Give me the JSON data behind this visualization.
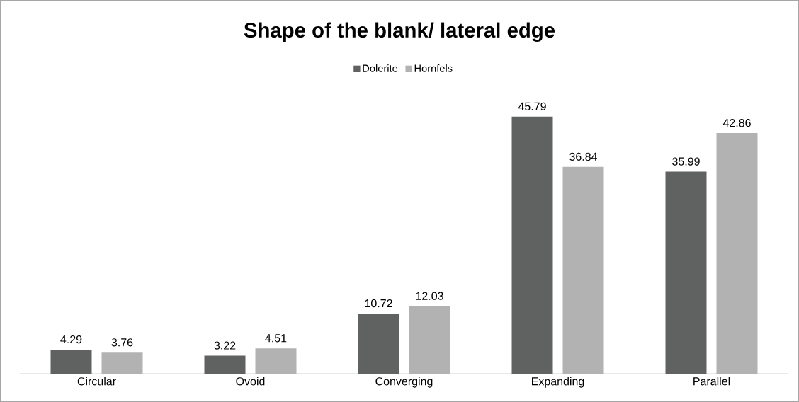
{
  "chart_data": {
    "type": "bar",
    "title": "Shape of the blank/ lateral edge",
    "categories": [
      "Circular",
      "Ovoid",
      "Converging",
      "Expanding",
      "Parallel"
    ],
    "series": [
      {
        "name": "Dolerite",
        "color": "#606261",
        "values": [
          4.29,
          3.22,
          10.72,
          45.79,
          35.99
        ]
      },
      {
        "name": "Hornfels",
        "color": "#b2b2b2",
        "values": [
          3.76,
          4.51,
          12.03,
          36.84,
          42.86
        ]
      }
    ],
    "tick_labels": "x",
    "data_labels": true,
    "legend": "top"
  }
}
